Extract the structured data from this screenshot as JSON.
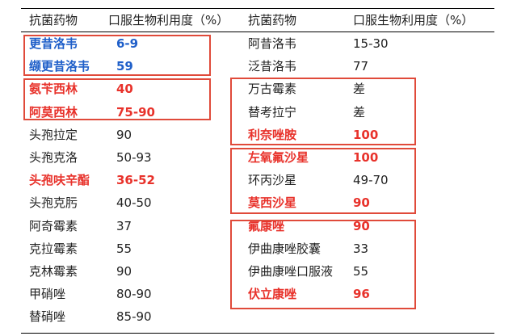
{
  "headers": {
    "drug": "抗菌药物",
    "bio": "口服生物利用度（%）"
  },
  "left_rows": [
    {
      "drug": "更昔洛韦",
      "bio": "6-9",
      "style": "blue"
    },
    {
      "drug": "缬更昔洛韦",
      "bio": "59",
      "style": "blue"
    },
    {
      "drug": "氨苄西林",
      "bio": "40",
      "style": "red"
    },
    {
      "drug": "阿莫西林",
      "bio": "75-90",
      "style": "red"
    },
    {
      "drug": "头孢拉定",
      "bio": "90",
      "style": "plain"
    },
    {
      "drug": "头孢克洛",
      "bio": "50-93",
      "style": "plain"
    },
    {
      "drug": "头孢呋辛酯",
      "bio": "36-52",
      "style": "red"
    },
    {
      "drug": "头孢克肟",
      "bio": "40-50",
      "style": "plain"
    },
    {
      "drug": "阿奇霉素",
      "bio": "37",
      "style": "plain"
    },
    {
      "drug": "克拉霉素",
      "bio": "55",
      "style": "plain"
    },
    {
      "drug": "克林霉素",
      "bio": "90",
      "style": "plain"
    },
    {
      "drug": "甲硝唑",
      "bio": "80-90",
      "style": "plain"
    },
    {
      "drug": "替硝唑",
      "bio": "85-90",
      "style": "plain"
    }
  ],
  "right_rows": [
    {
      "drug": "阿昔洛韦",
      "bio": "15-30",
      "style": "plain"
    },
    {
      "drug": "泛昔洛韦",
      "bio": "77",
      "style": "plain"
    },
    {
      "drug": "万古霉素",
      "bio": "差",
      "style": "plain"
    },
    {
      "drug": "替考拉宁",
      "bio": "差",
      "style": "plain"
    },
    {
      "drug": "利奈唑胺",
      "bio": "100",
      "style": "red"
    },
    {
      "drug": "左氧氟沙星",
      "bio": "100",
      "style": "red"
    },
    {
      "drug": "环丙沙星",
      "bio": "49-70",
      "style": "plain"
    },
    {
      "drug": "莫西沙星",
      "bio": "90",
      "style": "red"
    },
    {
      "drug": "氟康唑",
      "bio": "90",
      "style": "red"
    },
    {
      "drug": "伊曲康唑胶囊",
      "bio": "33",
      "style": "plain"
    },
    {
      "drug": "伊曲康唑口服液",
      "bio": "55",
      "style": "plain"
    },
    {
      "drug": "伏立康唑",
      "bio": "96",
      "style": "red"
    }
  ],
  "highlight_color": "#e04a3a",
  "blue_color": "#1f5fc9",
  "red_color": "#e8322b"
}
